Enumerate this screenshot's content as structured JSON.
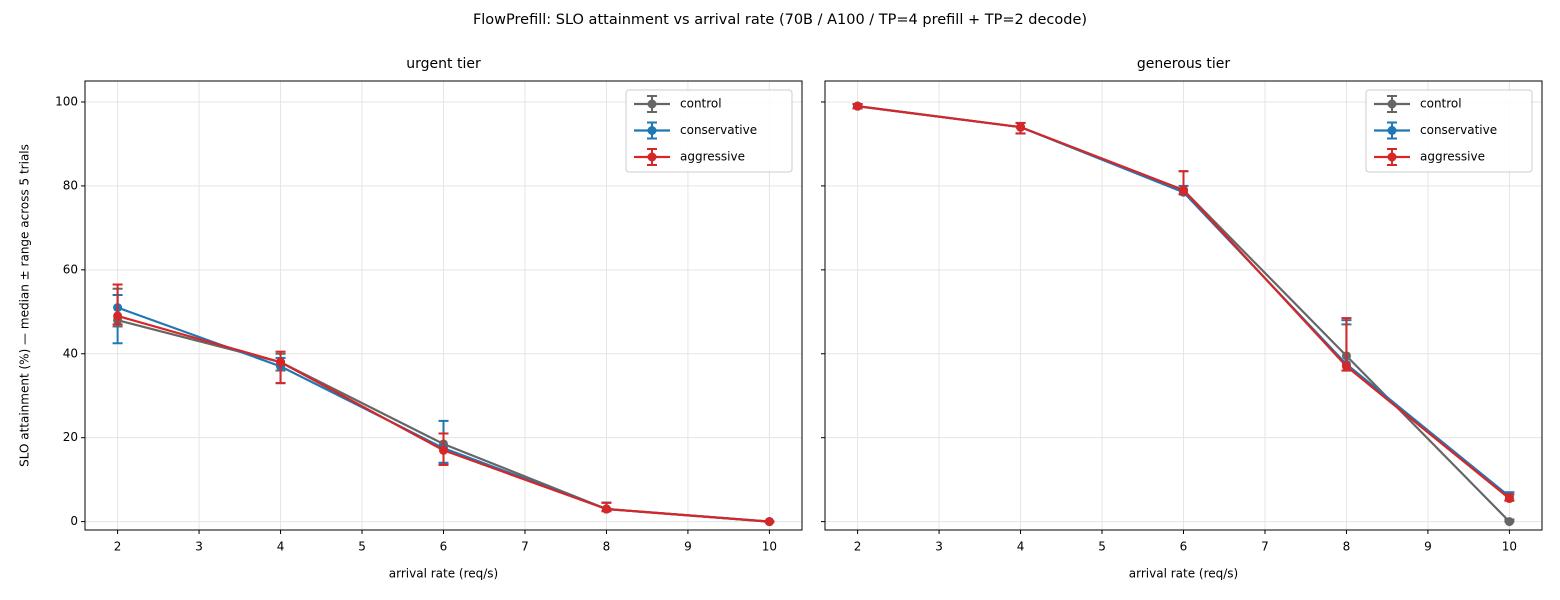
{
  "title": "FlowPrefill: SLO attainment vs arrival rate (70B / A100 / TP=4 prefill + TP=2 decode)",
  "chart_data": [
    {
      "type": "line",
      "title": "urgent tier",
      "xlabel": "arrival rate (req/s)",
      "ylabel": "SLO attainment (%)  — median ± range across 5 trials",
      "x": [
        2,
        4,
        6,
        8,
        10
      ],
      "xlim": [
        1.6,
        10.4
      ],
      "xticks": [
        2,
        3,
        4,
        5,
        6,
        7,
        8,
        9,
        10
      ],
      "ylim": [
        -2,
        105
      ],
      "yticks": [
        0,
        20,
        40,
        60,
        80,
        100
      ],
      "grid": true,
      "legend": "upper right",
      "sharey": false,
      "series": [
        {
          "name": "control",
          "color": "#666666",
          "values": [
            48,
            38,
            18.5,
            3,
            0
          ],
          "low": [
            46.5,
            36,
            14,
            2.5,
            0
          ],
          "high": [
            55.5,
            40,
            21,
            4.5,
            0
          ]
        },
        {
          "name": "conservative",
          "color": "#1f77b4",
          "values": [
            51,
            37,
            17.5,
            3,
            0
          ],
          "low": [
            42.5,
            33,
            14,
            2.5,
            0
          ],
          "high": [
            54,
            39,
            24,
            4.5,
            0
          ]
        },
        {
          "name": "aggressive",
          "color": "#d62728",
          "values": [
            49,
            38,
            17,
            3,
            0
          ],
          "low": [
            47,
            33,
            13.5,
            2.5,
            0
          ],
          "high": [
            56.5,
            40.5,
            21,
            4.5,
            0
          ]
        }
      ]
    },
    {
      "type": "line",
      "title": "generous tier",
      "xlabel": "arrival rate (req/s)",
      "x": [
        2,
        4,
        6,
        8,
        10
      ],
      "xlim": [
        1.6,
        10.4
      ],
      "xticks": [
        2,
        3,
        4,
        5,
        6,
        7,
        8,
        9,
        10
      ],
      "ylim": [
        -2,
        105
      ],
      "yticks": [
        0,
        20,
        40,
        60,
        80,
        100
      ],
      "grid": true,
      "legend": "upper right",
      "sharey": true,
      "series": [
        {
          "name": "control",
          "color": "#666666",
          "values": [
            99,
            94,
            79,
            39.5,
            0
          ],
          "low": [
            98.5,
            92.5,
            78,
            36,
            0
          ],
          "high": [
            99.5,
            95,
            83.5,
            47,
            0.5
          ]
        },
        {
          "name": "conservative",
          "color": "#1f77b4",
          "values": [
            99,
            94,
            78.5,
            37.5,
            6
          ],
          "low": [
            98.5,
            92.5,
            78,
            36,
            5
          ],
          "high": [
            99.5,
            95,
            80,
            48,
            7
          ]
        },
        {
          "name": "aggressive",
          "color": "#d62728",
          "values": [
            99,
            94,
            79,
            37,
            5.5
          ],
          "low": [
            98.5,
            92.5,
            78,
            36,
            5
          ],
          "high": [
            99.5,
            95,
            83.5,
            48.5,
            6.5
          ]
        }
      ]
    }
  ]
}
